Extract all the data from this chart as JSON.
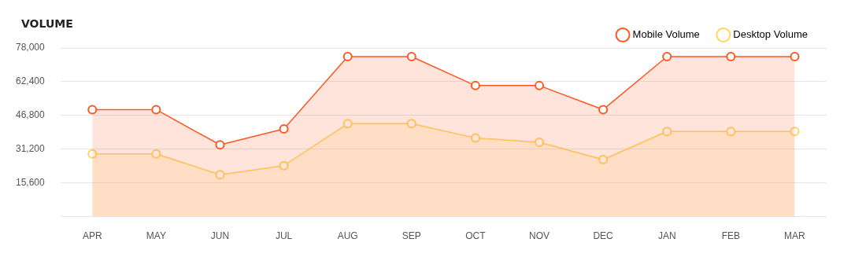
{
  "chart_data": {
    "type": "area",
    "title": "VOLUME",
    "categories": [
      "APR",
      "MAY",
      "JUN",
      "JUL",
      "AUG",
      "SEP",
      "OCT",
      "NOV",
      "DEC",
      "JAN",
      "FEB",
      "MAR"
    ],
    "series": [
      {
        "name": "Mobile Volume",
        "color": "#ff5722",
        "values": [
          49500,
          49500,
          33200,
          40600,
          74000,
          74000,
          60600,
          60600,
          49500,
          74000,
          74000,
          74000
        ]
      },
      {
        "name": "Desktop Volume",
        "color": "#ffd460",
        "values": [
          29000,
          29000,
          19400,
          23600,
          43000,
          43000,
          36400,
          34400,
          26400,
          39400,
          39400,
          39400
        ]
      }
    ],
    "ylim": [
      0,
      78000
    ],
    "yticks": [
      {
        "value": 0,
        "label": null
      },
      {
        "value": 15600,
        "label": "15,600"
      },
      {
        "value": 31200,
        "label": "31,200"
      },
      {
        "value": 46800,
        "label": "46,800"
      },
      {
        "value": 62400,
        "label": "62,400"
      },
      {
        "value": 78000,
        "label": "78,000"
      }
    ],
    "grid": "y",
    "legend": "top right",
    "marker": "circle",
    "line_style": "solid"
  }
}
